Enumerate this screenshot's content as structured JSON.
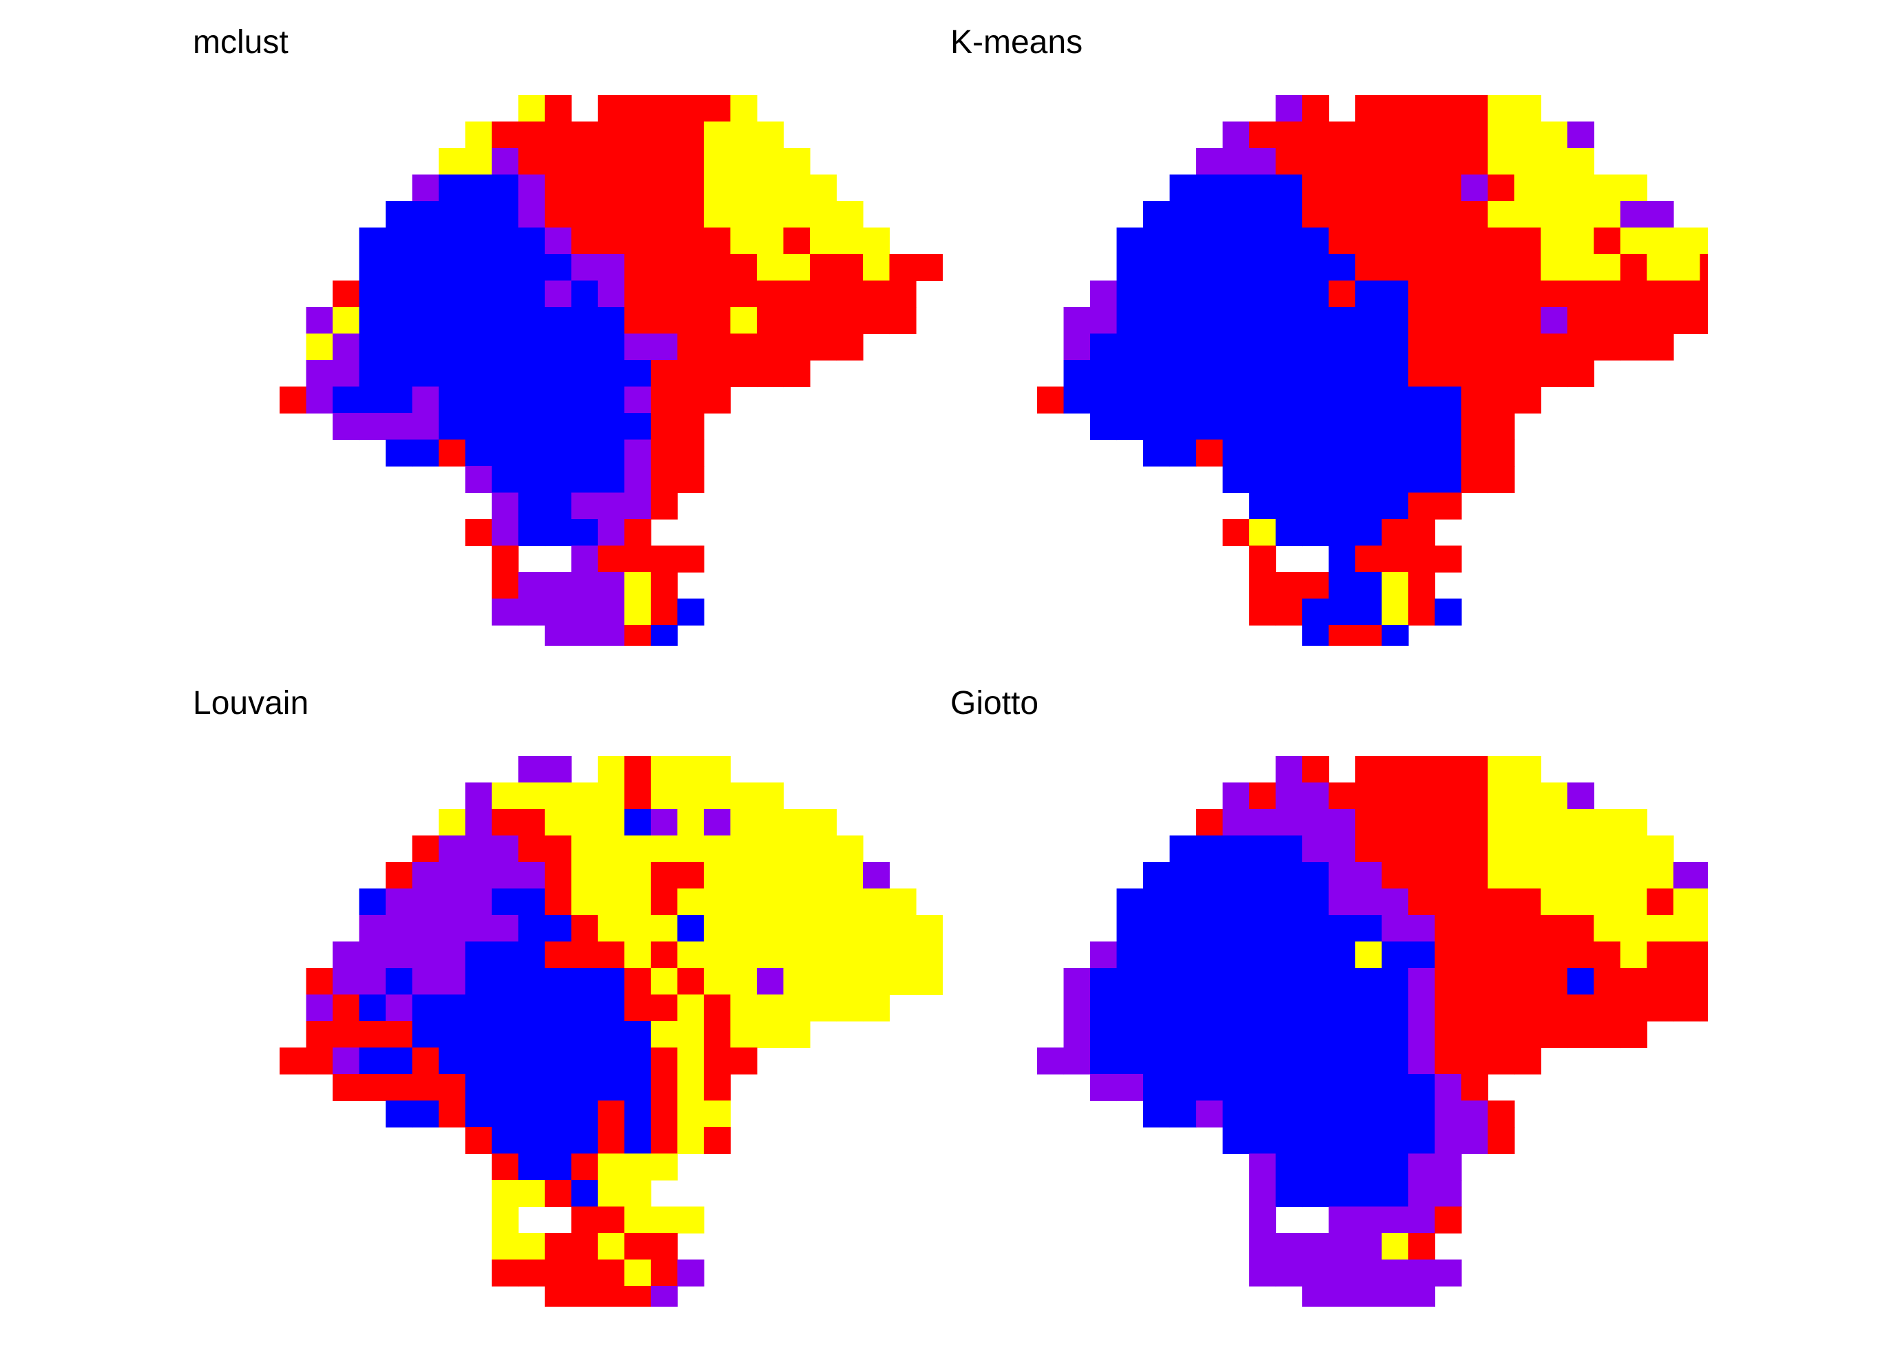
{
  "palette": {
    "R": "#ff0000",
    "Y": "#ffff00",
    "P": "#8b00ee",
    "B": "#0000ff"
  },
  "cluster_names": {
    "R": "red",
    "Y": "yellow",
    "P": "purple",
    "B": "blue"
  },
  "chart_data": [
    {
      "type": "heatmap",
      "title": "mclust",
      "grid": false,
      "legend": "none",
      "first_row": 0,
      "first_col": 0,
      "rows": [
        "...........YR.RRRRRY......",
        ".........YRRRRRRRRYYY.....",
        "........YYPRRRRRRRYYYY....",
        ".......PBBBPRRRRRRYYYYY...",
        "......BBBBBPRRRRRRYYYYYY..",
        ".....BBBBBBBPRRRRRRYYRYYY.",
        ".....BBBBBBBBPPRRRRRYYRRYRR",
        "....RBBBBBBBPBPRRRRRRRRRRR",
        "...PYBBBBBBBBBBRRRRYRRRRRR",
        "...YPBBBBBBBBBBPPRRRRRRR..",
        "...PPBBBBBBBBBBBRRRRRR....",
        "..RPBBBPBBBBBBBPRRR.......",
        "....PPPPBBBBBBBBRR........",
        "......BBRBBBBBBPRR........",
        ".........PBBBBBPRR........",
        "..........PBBPPPR.........",
        ".........RPBBBPR..........",
        "..........R..PRRRR........",
        "..........RPPPPYR.........",
        "..........PPPPPYRB........",
        "............PPPRB........."
      ]
    },
    {
      "type": "heatmap",
      "title": "K-means",
      "grid": false,
      "legend": "none",
      "first_row": 0,
      "first_col": 0,
      "rows": [
        "...........PR.RRRRRYY.....",
        ".........PRRRRRRRRRYYYP...",
        "........PPPRRRRRRRRYYYY...",
        ".......BBBBBRRRRRRPRYYYYY.",
        "......BBBBBBRRRRRRRYYYYYPP",
        ".....BBBBBBBBRRRRRRRRYYRYYYY",
        ".....BBBBBBBBBRRRRRRRYYYRYYRR",
        "....PBBBBBBBBRBBRRRRRRRRRRRRR",
        "...PPBBBBBBBBBBBRRRRRPRRRRRRR",
        "...PBBBBBBBBBBBBRRRRRRRRRR...",
        "...BBBBBBBBBBBBBRRRRRRR......",
        "..RBBBBBBBBBBBBBBBRRR........",
        "....BBBBBBBBBBBBBBRR.........",
        "......BBRBBBBBBBBBRR.........",
        ".........BBBBBBBBBRR.........",
        "..........BBBBBBRR...........",
        ".........RYBBBBRR............",
        "..........R..BRRRR...........",
        "..........RRRBBYR............",
        "..........RRBBBYRB...........",
        "............BRRB............."
      ]
    },
    {
      "type": "heatmap",
      "title": "Louvain",
      "grid": false,
      "legend": "none",
      "first_row": 0,
      "first_col": 0,
      "rows": [
        "...........PP.YRYYY.......",
        ".........PYYYYYRYYYYY.....",
        "........YPRRYYYBPYPYYYY...",
        ".......RPPPRRYYYYYYYYYYY..",
        "......RPPPPPRYYYRRYYYYYYP.",
        ".....BPPPPBBRYYYRYYYYYYYYY",
        ".....PPPPPPBBRYYYBYYYYYYYYY",
        "....PPPPPBBBRRRYRYYYYYYYYYY",
        "...RPPBPPBBBBBBRYRYYPYYYYYY",
        "...PRBPBBBBBBBBRRYRYYYYYY..",
        "...RRRRBBBBBBBBBYYRYYY.....",
        "..RRPBBRBBBBBBBBRYRR.......",
        "....RRRRRBBBBBBBRYR........",
        "......BBRBBBBBRBRYY........",
        ".........RBBBBRBRYR........",
        "..........RBBRYYY..........",
        "..........YYRBYY...........",
        "..........Y..RRYYY.........",
        "..........YYRRYRR..........",
        "..........RRRRRYRP.........",
        "............RRRRP.........."
      ]
    },
    {
      "type": "heatmap",
      "title": "Giotto",
      "grid": false,
      "legend": "none",
      "first_row": 0,
      "first_col": 0,
      "rows": [
        "...........PR.RRRRRYY.....",
        ".........PRPPRRRRRRYYYP...",
        "........RPPPPPRRRRRYYYYYY.",
        ".......BBBBBPPRRRRRYYYYYYY",
        "......BBBBBBBPPRRRRYYYYYYYPP",
        ".....BBBBBBBBPPPRRRRRYYYYRYYYY",
        ".....BBBBBBBBBBPPRRRRRRYYYYYYRR",
        "....PBBBBBBBBBYBBRRRRRRRYRRRRRR",
        "...PBBBBBBBBBBBBPRRRRRBRRRRRRRR",
        "...PBBBBBBBBBBBBPRRRRRRRRRRR...",
        "...PBBBBBBBBBBBBPRRRRRRRR......",
        "..PPBBBBBBBBBBBBPRRRR..........",
        "....PPBBBBBBBBBBBPR............",
        "......BBPBBBBBBBBPPR...........",
        ".........BBBBBBBBPPR...........",
        "..........PBBBBBPP.............",
        "..........PBBBBBPP.............",
        "..........P..PPPPR.............",
        "..........PPPPPYR..............",
        "..........PPPPPPPP.............",
        "............PPPPP.............."
      ]
    }
  ]
}
